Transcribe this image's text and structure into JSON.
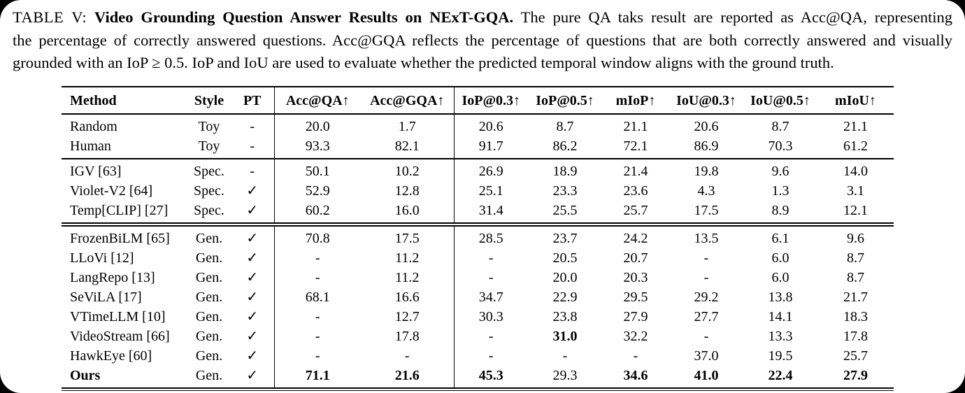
{
  "caption": {
    "label": "TABLE V:",
    "title": "Video Grounding Question Answer Results on NExT-GQA.",
    "line1_rest": "The pure QA taks result are reported as Acc@QA, representing",
    "line2": "the percentage of correctly answered questions. Acc@GQA reflects the percentage of questions that are both correctly answered and visually",
    "line3": "grounded with an IoP ≥ 0.5. IoP and IoU are used to evaluate whether the predicted temporal window aligns with the ground truth."
  },
  "table": {
    "columns": [
      "Method",
      "Style",
      "PT",
      "Acc@QA↑",
      "Acc@GQA↑",
      "IoP@0.3↑",
      "IoP@0.5↑",
      "mIoP↑",
      "IoU@0.3↑",
      "IoU@0.5↑",
      "mIoU↑"
    ],
    "checkmark_glyph": "✓",
    "groups": [
      {
        "rows": [
          {
            "cells": [
              "Random",
              "Toy",
              "-",
              "20.0",
              "1.7",
              "20.6",
              "8.7",
              "21.1",
              "20.6",
              "8.7",
              "21.1"
            ],
            "bold": []
          },
          {
            "cells": [
              "Human",
              "Toy",
              "-",
              "93.3",
              "82.1",
              "91.7",
              "86.2",
              "72.1",
              "86.9",
              "70.3",
              "61.2"
            ],
            "bold": []
          }
        ]
      },
      {
        "rows": [
          {
            "cells": [
              "IGV [63]",
              "Spec.",
              "-",
              "50.1",
              "10.2",
              "26.9",
              "18.9",
              "21.4",
              "19.8",
              "9.6",
              "14.0"
            ],
            "bold": []
          },
          {
            "cells": [
              "Violet-V2 [64]",
              "Spec.",
              "✓",
              "52.9",
              "12.8",
              "25.1",
              "23.3",
              "23.6",
              "4.3",
              "1.3",
              "3.1"
            ],
            "bold": []
          },
          {
            "cells": [
              "Temp[CLIP] [27]",
              "Spec.",
              "✓",
              "60.2",
              "16.0",
              "31.4",
              "25.5",
              "25.7",
              "17.5",
              "8.9",
              "12.1"
            ],
            "bold": []
          }
        ]
      },
      {
        "rows": [
          {
            "cells": [
              "FrozenBiLM [65]",
              "Gen.",
              "✓",
              "70.8",
              "17.5",
              "28.5",
              "23.7",
              "24.2",
              "13.5",
              "6.1",
              "9.6"
            ],
            "bold": []
          },
          {
            "cells": [
              "LLoVi [12]",
              "Gen.",
              "✓",
              "-",
              "11.2",
              "-",
              "20.5",
              "20.7",
              "-",
              "6.0",
              "8.7"
            ],
            "bold": []
          },
          {
            "cells": [
              "LangRepo [13]",
              "Gen.",
              "✓",
              "-",
              "11.2",
              "-",
              "20.0",
              "20.3",
              "-",
              "6.0",
              "8.7"
            ],
            "bold": []
          },
          {
            "cells": [
              "SeViLA [17]",
              "Gen.",
              "✓",
              "68.1",
              "16.6",
              "34.7",
              "22.9",
              "29.5",
              "29.2",
              "13.8",
              "21.7"
            ],
            "bold": []
          },
          {
            "cells": [
              "VTimeLLM [10]",
              "Gen.",
              "✓",
              "-",
              "12.7",
              "30.3",
              "23.8",
              "27.9",
              "27.7",
              "14.1",
              "18.3"
            ],
            "bold": []
          },
          {
            "cells": [
              "VideoStream [66]",
              "Gen.",
              "✓",
              "-",
              "17.8",
              "-",
              "31.0",
              "32.2",
              "-",
              "13.3",
              "17.8"
            ],
            "bold": [
              6
            ]
          },
          {
            "cells": [
              "HawkEye [60]",
              "Gen.",
              "✓",
              "-",
              "-",
              "-",
              "-",
              "-",
              "37.0",
              "19.5",
              "25.7"
            ],
            "bold": []
          },
          {
            "cells": [
              "Ours",
              "Gen.",
              "✓",
              "71.1",
              "21.6",
              "45.3",
              "29.3",
              "34.6",
              "41.0",
              "22.4",
              "27.9"
            ],
            "bold": [
              0,
              3,
              4,
              5,
              7,
              8,
              9,
              10
            ]
          }
        ]
      }
    ]
  }
}
